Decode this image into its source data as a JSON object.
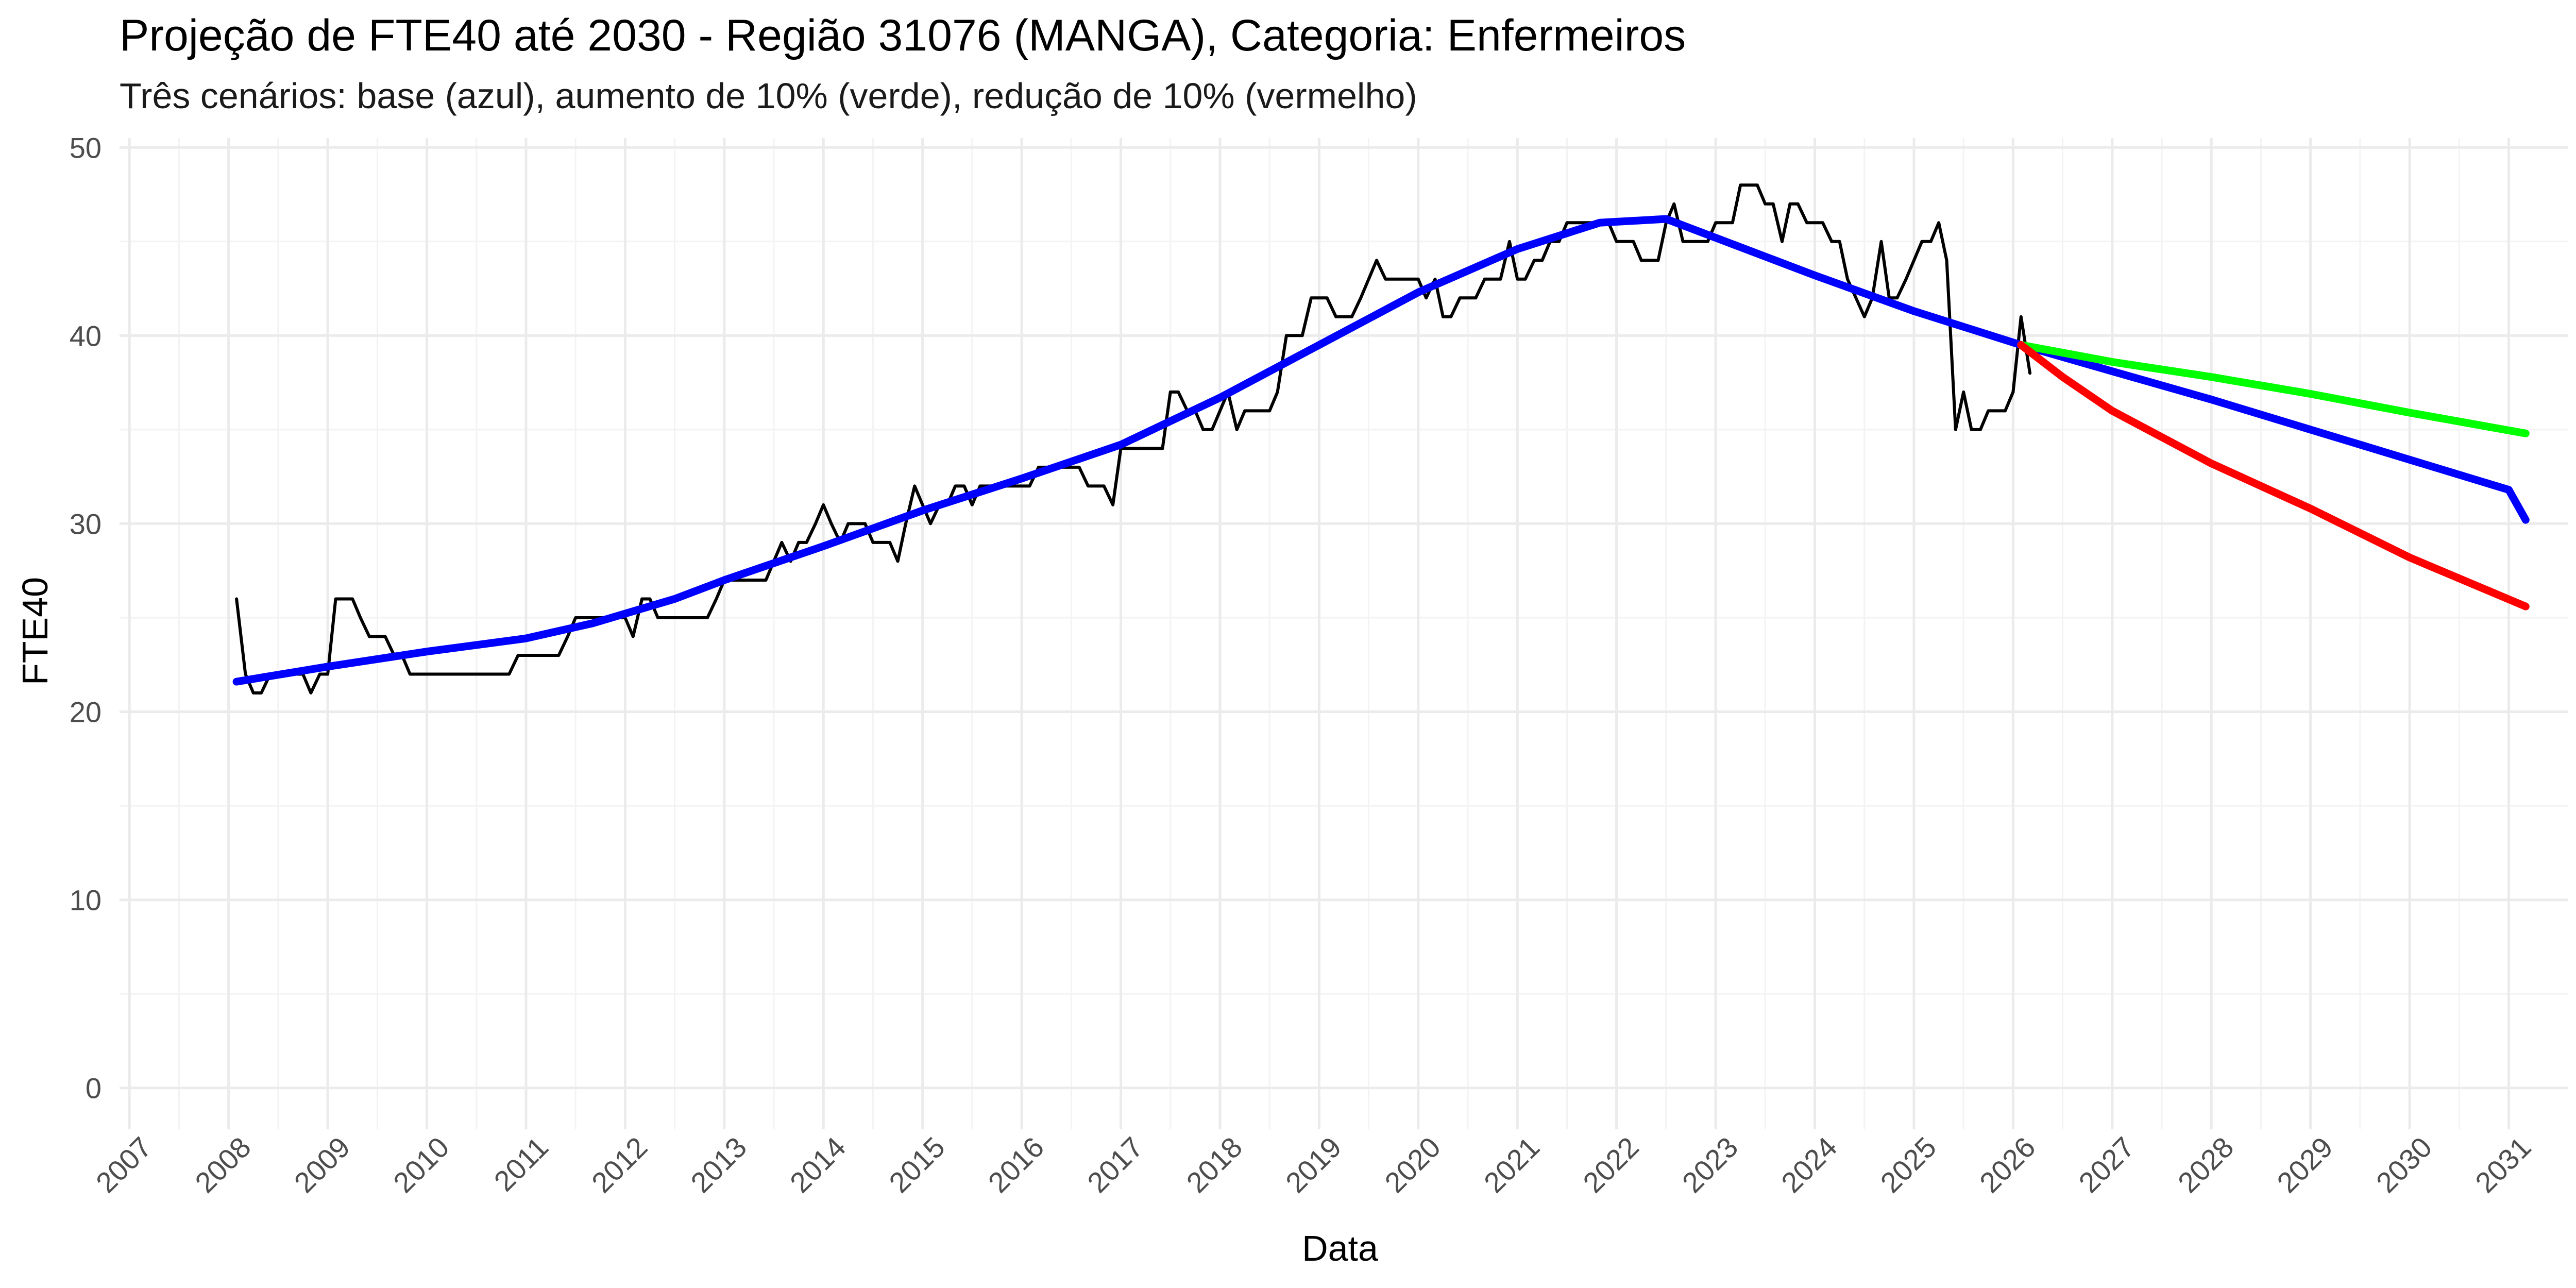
{
  "chart_data": {
    "type": "line",
    "title": "Projeção de FTE40 até 2030 - Região 31076 (MANGA), Categoria: Enfermeiros",
    "subtitle": "Três cenários: base (azul), aumento de 10% (verde), redução de 10% (vermelho)",
    "xlabel": "Data",
    "ylabel": "FTE40",
    "xlim": [
      2006.9,
      2031.6
    ],
    "ylim": [
      -2.2,
      50.5
    ],
    "x_ticks": [
      "2007",
      "2008",
      "2009",
      "2010",
      "2011",
      "2012",
      "2013",
      "2014",
      "2015",
      "2016",
      "2017",
      "2018",
      "2019",
      "2020",
      "2021",
      "2022",
      "2023",
      "2024",
      "2025",
      "2026",
      "2027",
      "2028",
      "2029",
      "2030",
      "2031"
    ],
    "y_ticks": [
      0,
      10,
      20,
      30,
      40,
      50
    ],
    "grid": true,
    "legend": "none",
    "series": [
      {
        "color": "#000000",
        "points": [
          [
            2008.08,
            26
          ],
          [
            2008.17,
            22
          ],
          [
            2008.25,
            21
          ],
          [
            2008.33,
            21
          ],
          [
            2008.42,
            22
          ],
          [
            2008.5,
            22
          ],
          [
            2008.58,
            22
          ],
          [
            2008.67,
            22
          ],
          [
            2008.75,
            22
          ],
          [
            2008.83,
            21
          ],
          [
            2008.92,
            22
          ],
          [
            2009.0,
            22
          ],
          [
            2009.08,
            26
          ],
          [
            2009.17,
            26
          ],
          [
            2009.25,
            26
          ],
          [
            2009.33,
            25
          ],
          [
            2009.42,
            24
          ],
          [
            2009.5,
            24
          ],
          [
            2009.58,
            24
          ],
          [
            2009.67,
            23
          ],
          [
            2009.75,
            23
          ],
          [
            2009.83,
            22
          ],
          [
            2009.92,
            22
          ],
          [
            2010.0,
            22
          ],
          [
            2010.17,
            22
          ],
          [
            2010.33,
            22
          ],
          [
            2010.5,
            22
          ],
          [
            2010.67,
            22
          ],
          [
            2010.83,
            22
          ],
          [
            2010.92,
            23
          ],
          [
            2011.0,
            23
          ],
          [
            2011.17,
            23
          ],
          [
            2011.33,
            23
          ],
          [
            2011.42,
            24
          ],
          [
            2011.5,
            25
          ],
          [
            2011.67,
            25
          ],
          [
            2011.83,
            25
          ],
          [
            2012.0,
            25
          ],
          [
            2012.08,
            24
          ],
          [
            2012.17,
            26
          ],
          [
            2012.25,
            26
          ],
          [
            2012.33,
            25
          ],
          [
            2012.5,
            25
          ],
          [
            2012.67,
            25
          ],
          [
            2012.83,
            25
          ],
          [
            2012.92,
            26
          ],
          [
            2013.0,
            27
          ],
          [
            2013.17,
            27
          ],
          [
            2013.33,
            27
          ],
          [
            2013.42,
            27
          ],
          [
            2013.5,
            28
          ],
          [
            2013.58,
            29
          ],
          [
            2013.67,
            28
          ],
          [
            2013.75,
            29
          ],
          [
            2013.83,
            29
          ],
          [
            2013.92,
            30
          ],
          [
            2014.0,
            31
          ],
          [
            2014.08,
            30
          ],
          [
            2014.17,
            29
          ],
          [
            2014.25,
            30
          ],
          [
            2014.33,
            30
          ],
          [
            2014.42,
            30
          ],
          [
            2014.5,
            29
          ],
          [
            2014.58,
            29
          ],
          [
            2014.67,
            29
          ],
          [
            2014.75,
            28
          ],
          [
            2014.83,
            30
          ],
          [
            2014.92,
            32
          ],
          [
            2015.0,
            31
          ],
          [
            2015.08,
            30
          ],
          [
            2015.17,
            31
          ],
          [
            2015.25,
            31
          ],
          [
            2015.33,
            32
          ],
          [
            2015.42,
            32
          ],
          [
            2015.5,
            31
          ],
          [
            2015.58,
            32
          ],
          [
            2015.67,
            32
          ],
          [
            2015.75,
            32
          ],
          [
            2015.83,
            32
          ],
          [
            2016.0,
            32
          ],
          [
            2016.08,
            32
          ],
          [
            2016.17,
            33
          ],
          [
            2016.33,
            33
          ],
          [
            2016.5,
            33
          ],
          [
            2016.58,
            33
          ],
          [
            2016.67,
            32
          ],
          [
            2016.75,
            32
          ],
          [
            2016.83,
            32
          ],
          [
            2016.92,
            31
          ],
          [
            2017.0,
            34
          ],
          [
            2017.17,
            34
          ],
          [
            2017.33,
            34
          ],
          [
            2017.42,
            34
          ],
          [
            2017.5,
            37
          ],
          [
            2017.58,
            37
          ],
          [
            2017.67,
            36
          ],
          [
            2017.75,
            36
          ],
          [
            2017.83,
            35
          ],
          [
            2017.92,
            35
          ],
          [
            2018.0,
            36
          ],
          [
            2018.08,
            37
          ],
          [
            2018.17,
            35
          ],
          [
            2018.25,
            36
          ],
          [
            2018.33,
            36
          ],
          [
            2018.5,
            36
          ],
          [
            2018.58,
            37
          ],
          [
            2018.67,
            40
          ],
          [
            2018.83,
            40
          ],
          [
            2018.92,
            42
          ],
          [
            2019.08,
            42
          ],
          [
            2019.17,
            41
          ],
          [
            2019.33,
            41
          ],
          [
            2019.42,
            42
          ],
          [
            2019.5,
            43
          ],
          [
            2019.58,
            44
          ],
          [
            2019.67,
            43
          ],
          [
            2019.83,
            43
          ],
          [
            2020.0,
            43
          ],
          [
            2020.08,
            42
          ],
          [
            2020.17,
            43
          ],
          [
            2020.25,
            41
          ],
          [
            2020.33,
            41
          ],
          [
            2020.42,
            42
          ],
          [
            2020.58,
            42
          ],
          [
            2020.67,
            43
          ],
          [
            2020.83,
            43
          ],
          [
            2020.92,
            45
          ],
          [
            2021.0,
            43
          ],
          [
            2021.08,
            43
          ],
          [
            2021.17,
            44
          ],
          [
            2021.25,
            44
          ],
          [
            2021.33,
            45
          ],
          [
            2021.42,
            45
          ],
          [
            2021.5,
            46
          ],
          [
            2021.67,
            46
          ],
          [
            2021.92,
            46
          ],
          [
            2022.0,
            45
          ],
          [
            2022.17,
            45
          ],
          [
            2022.25,
            44
          ],
          [
            2022.42,
            44
          ],
          [
            2022.5,
            46
          ],
          [
            2022.58,
            47
          ],
          [
            2022.67,
            45
          ],
          [
            2022.83,
            45
          ],
          [
            2022.92,
            45
          ],
          [
            2023.0,
            46
          ],
          [
            2023.17,
            46
          ],
          [
            2023.25,
            48
          ],
          [
            2023.42,
            48
          ],
          [
            2023.5,
            47
          ],
          [
            2023.58,
            47
          ],
          [
            2023.67,
            45
          ],
          [
            2023.75,
            47
          ],
          [
            2023.83,
            47
          ],
          [
            2023.92,
            46
          ],
          [
            2024.08,
            46
          ],
          [
            2024.17,
            45
          ],
          [
            2024.25,
            45
          ],
          [
            2024.33,
            43
          ],
          [
            2024.5,
            41
          ],
          [
            2024.58,
            42
          ],
          [
            2024.67,
            45
          ],
          [
            2024.75,
            42
          ],
          [
            2024.83,
            42
          ],
          [
            2024.92,
            43
          ],
          [
            2025.0,
            44
          ],
          [
            2025.08,
            45
          ],
          [
            2025.17,
            45
          ],
          [
            2025.25,
            46
          ],
          [
            2025.33,
            44
          ],
          [
            2025.42,
            35
          ],
          [
            2025.5,
            37
          ],
          [
            2025.58,
            35
          ],
          [
            2025.67,
            35
          ],
          [
            2025.75,
            36
          ],
          [
            2025.92,
            36
          ],
          [
            2026.0,
            37
          ],
          [
            2026.08,
            41
          ],
          [
            2026.17,
            38
          ]
        ]
      },
      {
        "color": "#0000ff",
        "points": [
          [
            2008.08,
            21.6
          ],
          [
            2009.0,
            22.4
          ],
          [
            2010.0,
            23.2
          ],
          [
            2011.0,
            23.9
          ],
          [
            2011.67,
            24.7
          ],
          [
            2012.5,
            26
          ],
          [
            2013.0,
            27
          ],
          [
            2014.0,
            28.8
          ],
          [
            2015.0,
            30.7
          ],
          [
            2016.0,
            32.4
          ],
          [
            2017.0,
            34.2
          ],
          [
            2018.0,
            36.7
          ],
          [
            2019.0,
            39.5
          ],
          [
            2020.0,
            42.3
          ],
          [
            2021.0,
            44.6
          ],
          [
            2021.83,
            46
          ],
          [
            2022.5,
            46.2
          ],
          [
            2023.0,
            45.2
          ],
          [
            2024.0,
            43.2
          ],
          [
            2025.0,
            41.3
          ],
          [
            2026.08,
            39.5
          ],
          [
            2027.0,
            38.1
          ],
          [
            2028.0,
            36.6
          ],
          [
            2029.0,
            35
          ],
          [
            2030.0,
            33.4
          ],
          [
            2031.0,
            31.8
          ],
          [
            2031.17,
            30.2
          ]
        ]
      },
      {
        "color": "#00ff00",
        "points": [
          [
            2026.08,
            39.5
          ],
          [
            2027.0,
            38.6
          ],
          [
            2028.0,
            37.8
          ],
          [
            2029.0,
            36.9
          ],
          [
            2030.0,
            35.9
          ],
          [
            2031.17,
            34.8
          ]
        ]
      },
      {
        "color": "#ff0000",
        "points": [
          [
            2026.08,
            39.5
          ],
          [
            2026.5,
            37.8
          ],
          [
            2027.0,
            36
          ],
          [
            2028.0,
            33.2
          ],
          [
            2029.0,
            30.8
          ],
          [
            2030.0,
            28.2
          ],
          [
            2031.17,
            25.6
          ]
        ]
      }
    ]
  }
}
